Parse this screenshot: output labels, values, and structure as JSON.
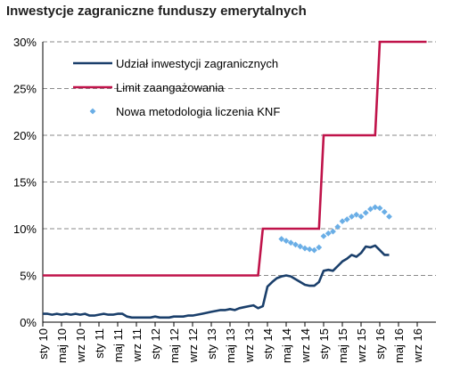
{
  "chart_data": {
    "type": "line",
    "title": "Inwestycje zagraniczne funduszy emerytalnych",
    "ylim": [
      0,
      30
    ],
    "yticks": [
      "0%",
      "5%",
      "10%",
      "15%",
      "20%",
      "25%",
      "30%"
    ],
    "ytick_values": [
      0,
      5,
      10,
      15,
      20,
      25,
      30
    ],
    "xticks": [
      "sty 10",
      "maj 10",
      "wrz 10",
      "sty 11",
      "maj 11",
      "wrz 11",
      "sty 12",
      "maj 12",
      "wrz 12",
      "sty 13",
      "maj 13",
      "wrz 13",
      "sty 14",
      "maj 14",
      "wrz 14",
      "sty 15",
      "maj 15",
      "wrz 15",
      "sty 16",
      "maj 16",
      "wrz 16"
    ],
    "xtick_months": [
      0,
      4,
      8,
      12,
      16,
      20,
      24,
      28,
      32,
      36,
      40,
      44,
      48,
      52,
      56,
      60,
      64,
      68,
      72,
      76,
      80
    ],
    "x_domain_months": [
      0,
      84
    ],
    "grid": "horizontal dashed",
    "legend_position": "top-left",
    "series": [
      {
        "name": "Udział inwestycji zagranicznych",
        "color": "#1a3f6b",
        "style": "line",
        "x": [
          0,
          1,
          2,
          3,
          4,
          5,
          6,
          7,
          8,
          9,
          10,
          11,
          12,
          13,
          14,
          15,
          16,
          17,
          18,
          19,
          20,
          21,
          22,
          23,
          24,
          25,
          26,
          27,
          28,
          29,
          30,
          31,
          32,
          33,
          34,
          35,
          36,
          37,
          38,
          39,
          40,
          41,
          42,
          43,
          44,
          45,
          46,
          47,
          48,
          49,
          50,
          51,
          52,
          53,
          54,
          55,
          56,
          57,
          58,
          59,
          60,
          61,
          62,
          63,
          64,
          65,
          66,
          67,
          68,
          69,
          70,
          71,
          72,
          73,
          74
        ],
        "values": [
          0.9,
          0.9,
          0.8,
          0.9,
          0.8,
          0.9,
          0.8,
          0.9,
          0.8,
          0.9,
          0.7,
          0.7,
          0.8,
          0.9,
          0.8,
          0.8,
          0.9,
          0.9,
          0.6,
          0.5,
          0.5,
          0.5,
          0.5,
          0.5,
          0.6,
          0.5,
          0.5,
          0.5,
          0.6,
          0.6,
          0.6,
          0.7,
          0.7,
          0.8,
          0.9,
          1.0,
          1.1,
          1.2,
          1.3,
          1.3,
          1.4,
          1.3,
          1.5,
          1.6,
          1.7,
          1.8,
          1.5,
          1.7,
          3.8,
          4.3,
          4.7,
          4.9,
          5.0,
          4.9,
          4.6,
          4.3,
          4.0,
          3.9,
          3.9,
          4.3,
          5.5,
          5.6,
          5.5,
          6.0,
          6.5,
          6.8,
          7.2,
          7.0,
          7.4,
          8.1,
          8.0,
          8.2,
          7.7,
          7.2,
          7.2
        ]
      },
      {
        "name": "Limit zaangażowania",
        "color": "#c0134a",
        "style": "step",
        "x": [
          0,
          46,
          47,
          59,
          60,
          71,
          72,
          82
        ],
        "values": [
          5,
          5,
          10,
          10,
          20,
          20,
          30,
          30
        ]
      },
      {
        "name": "Nowa metodologia liczenia KNF",
        "color": "#6aaee6",
        "style": "markers",
        "x": [
          51,
          52,
          53,
          54,
          55,
          56,
          57,
          58,
          59,
          60,
          61,
          62,
          63,
          64,
          65,
          66,
          67,
          68,
          69,
          70,
          71,
          72,
          73,
          74
        ],
        "values": [
          8.9,
          8.7,
          8.5,
          8.3,
          8.1,
          7.9,
          7.8,
          7.7,
          8.0,
          9.2,
          9.5,
          9.7,
          10.2,
          10.8,
          11.0,
          11.3,
          11.5,
          11.3,
          11.7,
          12.1,
          12.3,
          12.2,
          11.8,
          11.3
        ]
      }
    ]
  }
}
